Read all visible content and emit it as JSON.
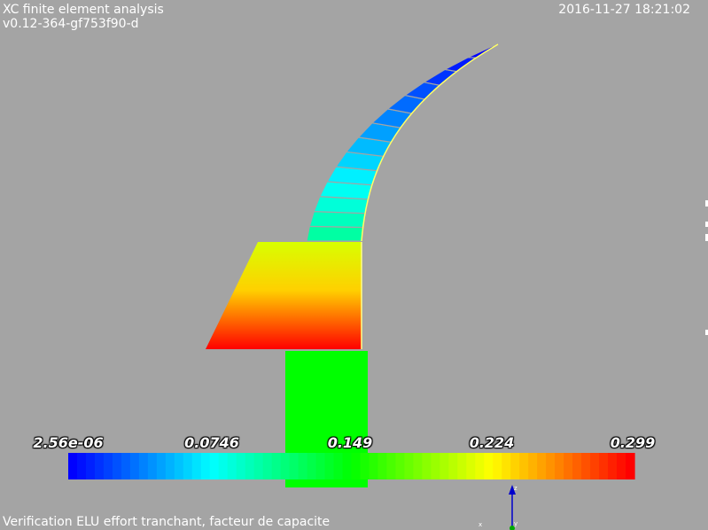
{
  "header": {
    "app_title": "XC finite element analysis",
    "version": "v0.12-364-gf753f90-d",
    "timestamp": "2016-11-27 18:21:02"
  },
  "footer": {
    "caption": "Verification ELU effort tranchant, facteur de capacite"
  },
  "colorbar": {
    "min": 2.56e-06,
    "max": 0.299,
    "tick_labels": [
      "2.56e-06",
      "0.0746",
      "0.149",
      "0.224",
      "0.299"
    ],
    "colormap": "blue-to-red rainbow"
  },
  "axes_triad": {
    "labels": [
      "z",
      "y",
      "x"
    ]
  },
  "colors": {
    "background": "#a4a4a4",
    "low": "#0000ff",
    "mid": "#00ff00",
    "high": "#ff0000"
  }
}
